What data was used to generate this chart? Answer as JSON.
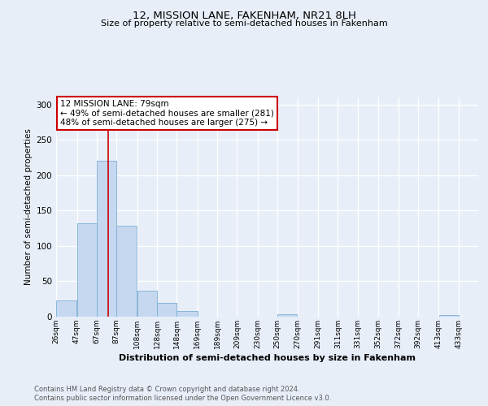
{
  "title1": "12, MISSION LANE, FAKENHAM, NR21 8LH",
  "title2": "Size of property relative to semi-detached houses in Fakenham",
  "xlabel": "Distribution of semi-detached houses by size in Fakenham",
  "ylabel": "Number of semi-detached properties",
  "bar_left_edges": [
    26,
    47,
    67,
    87,
    108,
    128,
    148,
    169,
    189,
    209,
    230,
    250,
    270,
    291,
    311,
    331,
    352,
    372,
    392,
    413
  ],
  "bar_widths": [
    21,
    20,
    20,
    21,
    20,
    20,
    21,
    20,
    20,
    21,
    20,
    20,
    21,
    20,
    20,
    21,
    20,
    20,
    21,
    20
  ],
  "bar_heights": [
    23,
    132,
    221,
    129,
    37,
    20,
    8,
    0,
    0,
    0,
    0,
    4,
    0,
    0,
    0,
    0,
    0,
    0,
    0,
    2
  ],
  "bar_color": "#c5d8f0",
  "bar_edge_color": "#7bafd4",
  "vline_x": 79,
  "vline_color": "#cc0000",
  "annotation_title": "12 MISSION LANE: 79sqm",
  "annotation_line1": "← 49% of semi-detached houses are smaller (281)",
  "annotation_line2": "48% of semi-detached houses are larger (275) →",
  "annotation_box_color": "#cc0000",
  "ylim": [
    0,
    310
  ],
  "yticks": [
    0,
    50,
    100,
    150,
    200,
    250,
    300
  ],
  "xtick_labels": [
    "26sqm",
    "47sqm",
    "67sqm",
    "87sqm",
    "108sqm",
    "128sqm",
    "148sqm",
    "169sqm",
    "189sqm",
    "209sqm",
    "230sqm",
    "250sqm",
    "270sqm",
    "291sqm",
    "311sqm",
    "331sqm",
    "352sqm",
    "372sqm",
    "392sqm",
    "413sqm",
    "433sqm"
  ],
  "xtick_positions": [
    26,
    47,
    67,
    87,
    108,
    128,
    148,
    169,
    189,
    209,
    230,
    250,
    270,
    291,
    311,
    331,
    352,
    372,
    392,
    413,
    433
  ],
  "xlim_left": 26,
  "xlim_right": 453,
  "footer1": "Contains HM Land Registry data © Crown copyright and database right 2024.",
  "footer2": "Contains public sector information licensed under the Open Government Licence v3.0.",
  "bg_color": "#e8eef8",
  "plot_bg_color": "#e8eef8"
}
